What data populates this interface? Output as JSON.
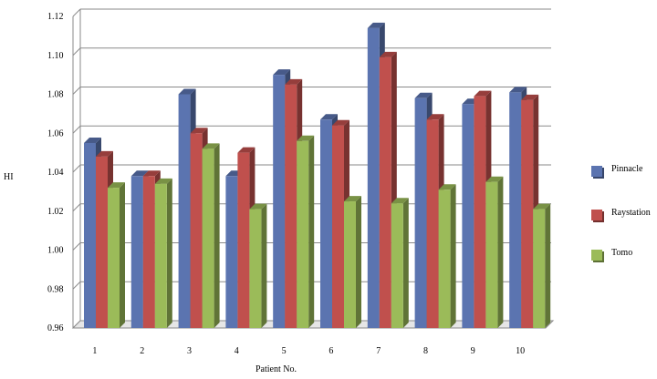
{
  "chart_data": {
    "type": "bar",
    "title": "",
    "xlabel": "Patient No.",
    "ylabel": "HI",
    "ylim": [
      0.96,
      1.12
    ],
    "yticks": [
      "0.96",
      "0.98",
      "1.00",
      "1.02",
      "1.04",
      "1.06",
      "1.08",
      "1.10",
      "1.12"
    ],
    "categories": [
      "1",
      "2",
      "3",
      "4",
      "5",
      "6",
      "7",
      "8",
      "9",
      "10"
    ],
    "series": [
      {
        "name": "Pinnacle",
        "color": "#5b74b0",
        "values": [
          1.055,
          1.038,
          1.08,
          1.038,
          1.09,
          1.067,
          1.114,
          1.078,
          1.075,
          1.081
        ]
      },
      {
        "name": "Raystation",
        "color": "#c0504d",
        "values": [
          1.048,
          1.038,
          1.06,
          1.05,
          1.085,
          1.064,
          1.099,
          1.067,
          1.079,
          1.077
        ]
      },
      {
        "name": "Tomo",
        "color": "#9bbb59",
        "values": [
          1.032,
          1.034,
          1.052,
          1.021,
          1.056,
          1.025,
          1.024,
          1.031,
          1.035,
          1.021
        ]
      }
    ],
    "grid": true,
    "legend_position": "right",
    "style": "3d-clustered-bar"
  }
}
